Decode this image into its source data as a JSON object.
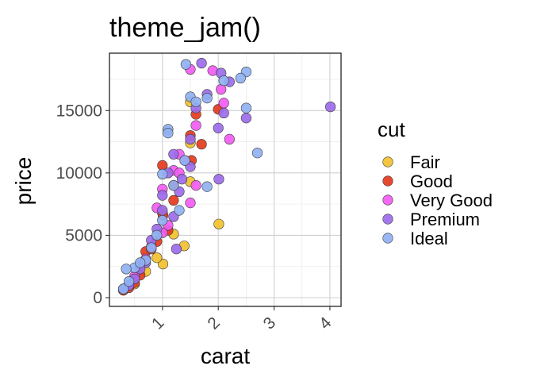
{
  "chart_data": {
    "type": "scatter",
    "title": "theme_jam()",
    "xlabel": "carat",
    "ylabel": "price",
    "xlim": [
      0.05,
      4.2
    ],
    "ylim": [
      -700,
      19600
    ],
    "x_ticks": [
      1,
      2,
      3,
      4
    ],
    "y_ticks": [
      0,
      5000,
      10000,
      15000
    ],
    "x_tick_labels": [
      "1",
      "2",
      "3",
      "4"
    ],
    "y_tick_labels": [
      "0",
      "5000",
      "10000",
      "15000"
    ],
    "x_tick_label_rotation_deg": -45,
    "grid": true,
    "legend": {
      "title": "cut",
      "position": "right"
    },
    "series": [
      {
        "name": "Fair",
        "color": "#F2C12E",
        "points": [
          [
            1.5,
            15700
          ],
          [
            1.5,
            12400
          ],
          [
            1.39,
            4150
          ],
          [
            2.01,
            5900
          ],
          [
            1.01,
            2700
          ],
          [
            0.7,
            2100
          ],
          [
            0.9,
            3200
          ],
          [
            1.2,
            5100
          ],
          [
            1.5,
            9300
          ],
          [
            1.0,
            6800
          ],
          [
            0.5,
            1100
          ],
          [
            0.3,
            600
          ]
        ]
      },
      {
        "name": "Good",
        "color": "#E5391D",
        "points": [
          [
            1.0,
            10600
          ],
          [
            1.5,
            13000
          ],
          [
            1.7,
            12300
          ],
          [
            1.6,
            14700
          ],
          [
            2.0,
            15100
          ],
          [
            1.52,
            11000
          ],
          [
            1.2,
            7800
          ],
          [
            1.01,
            6600
          ],
          [
            0.7,
            3700
          ],
          [
            0.9,
            4500
          ],
          [
            0.5,
            1200
          ],
          [
            0.3,
            600
          ],
          [
            1.2,
            9000
          ],
          [
            0.8,
            3900
          ],
          [
            0.4,
            800
          ],
          [
            1.1,
            5400
          ],
          [
            0.6,
            1800
          ]
        ]
      },
      {
        "name": "Very Good",
        "color": "#F25CF2",
        "points": [
          [
            1.5,
            18300
          ],
          [
            1.9,
            18200
          ],
          [
            2.1,
            15600
          ],
          [
            2.2,
            12700
          ],
          [
            1.6,
            13800
          ],
          [
            1.3,
            11500
          ],
          [
            1.2,
            10200
          ],
          [
            1.0,
            8700
          ],
          [
            0.9,
            7200
          ],
          [
            1.1,
            5800
          ],
          [
            1.3,
            10000
          ],
          [
            1.6,
            9000
          ],
          [
            0.7,
            3100
          ],
          [
            0.5,
            1700
          ],
          [
            0.4,
            1000
          ],
          [
            0.3,
            700
          ],
          [
            1.0,
            5200
          ],
          [
            1.5,
            7600
          ],
          [
            2.05,
            16700
          ],
          [
            0.6,
            2600
          ],
          [
            1.4,
            11000
          ],
          [
            0.8,
            4100
          ]
        ]
      },
      {
        "name": "Premium",
        "color": "#9C6BEA",
        "points": [
          [
            1.7,
            18800
          ],
          [
            2.05,
            18000
          ],
          [
            2.2,
            17300
          ],
          [
            4.01,
            15300
          ],
          [
            2.5,
            14400
          ],
          [
            1.8,
            16300
          ],
          [
            1.6,
            15200
          ],
          [
            2.0,
            13600
          ],
          [
            2.01,
            9500
          ],
          [
            1.5,
            12700
          ],
          [
            1.2,
            11500
          ],
          [
            1.0,
            8200
          ],
          [
            1.0,
            7000
          ],
          [
            0.9,
            5500
          ],
          [
            1.2,
            6500
          ],
          [
            1.35,
            9500
          ],
          [
            1.1,
            10000
          ],
          [
            0.7,
            2800
          ],
          [
            0.6,
            2300
          ],
          [
            0.5,
            1500
          ],
          [
            0.4,
            1000
          ],
          [
            0.3,
            700
          ],
          [
            1.3,
            8500
          ],
          [
            1.5,
            10500
          ],
          [
            0.8,
            4600
          ],
          [
            1.25,
            3900
          ],
          [
            2.1,
            14800
          ]
        ]
      },
      {
        "name": "Ideal",
        "color": "#8FB1F2",
        "points": [
          [
            1.42,
            18700
          ],
          [
            2.5,
            18100
          ],
          [
            2.4,
            17600
          ],
          [
            2.1,
            17400
          ],
          [
            1.8,
            16000
          ],
          [
            1.5,
            16100
          ],
          [
            2.5,
            15200
          ],
          [
            2.7,
            11600
          ],
          [
            1.1,
            13500
          ],
          [
            1.1,
            13200
          ],
          [
            1.8,
            8900
          ],
          [
            1.4,
            11000
          ],
          [
            1.2,
            9000
          ],
          [
            1.0,
            6200
          ],
          [
            0.9,
            5000
          ],
          [
            0.7,
            3000
          ],
          [
            0.5,
            2400
          ],
          [
            0.3,
            700
          ],
          [
            0.35,
            2300
          ],
          [
            0.4,
            1300
          ],
          [
            0.6,
            2800
          ],
          [
            1.0,
            9900
          ],
          [
            1.6,
            15700
          ],
          [
            1.3,
            7000
          ],
          [
            0.8,
            4000
          ]
        ]
      }
    ]
  }
}
